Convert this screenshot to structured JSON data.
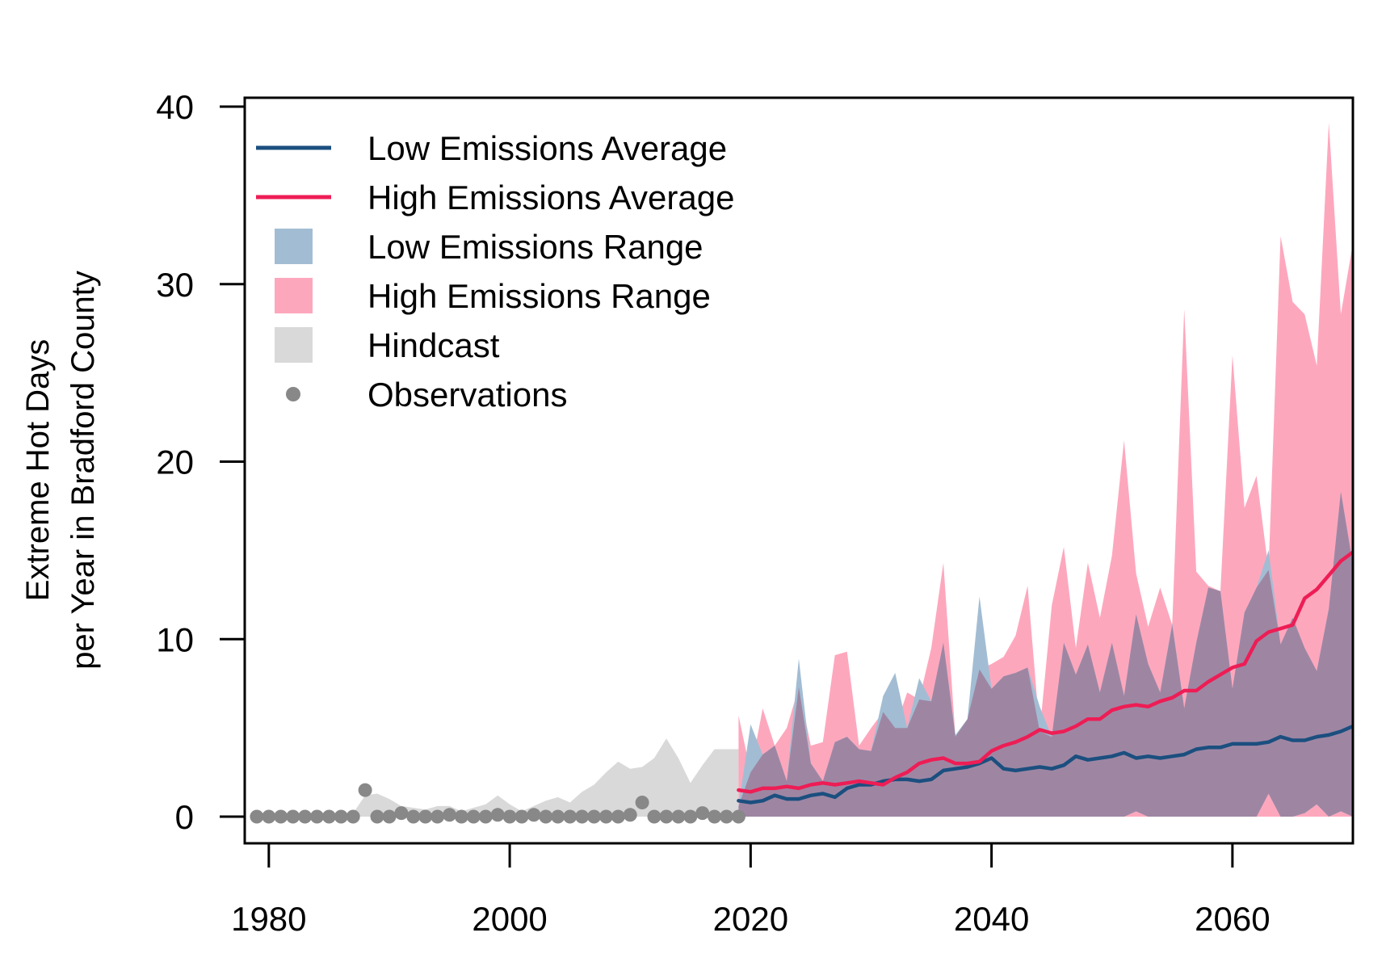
{
  "chart_data": {
    "type": "area",
    "ylabel_lines": [
      "Extreme Hot Days",
      "per Year in Bradford County"
    ],
    "xlabel": "",
    "xlim": [
      1978,
      2070
    ],
    "ylim": [
      -1.5,
      40.5
    ],
    "x_ticks": [
      1980,
      2000,
      2020,
      2040,
      2060
    ],
    "y_ticks": [
      0,
      10,
      20,
      30,
      40
    ],
    "grid": false,
    "legend_position": "top-left",
    "legend": [
      {
        "label": "Low Emissions Average",
        "kind": "line",
        "color": "#1b4f7f"
      },
      {
        "label": "High Emissions Average",
        "kind": "line",
        "color": "#ee1d55"
      },
      {
        "label": "Low Emissions Range",
        "kind": "box",
        "color": "#a2bdd3"
      },
      {
        "label": "High Emissions Range",
        "kind": "box",
        "color": "#fda7bd"
      },
      {
        "label": "Hindcast",
        "kind": "box",
        "color": "#d9d9d9"
      },
      {
        "label": "Observations",
        "kind": "point",
        "color": "#888888"
      }
    ],
    "colors": {
      "low_avg": "#1b4f7f",
      "high_avg": "#ee1d55",
      "low_range": "#a2bdd3",
      "high_range": "#fda7bd",
      "overlap": "#9e86a3",
      "hindcast": "#d9d9d9",
      "observations": "#888888"
    },
    "observations": {
      "x": [
        1979,
        1980,
        1981,
        1982,
        1983,
        1984,
        1985,
        1986,
        1987,
        1988,
        1989,
        1990,
        1991,
        1992,
        1993,
        1994,
        1995,
        1996,
        1997,
        1998,
        1999,
        2000,
        2001,
        2002,
        2003,
        2004,
        2005,
        2006,
        2007,
        2008,
        2009,
        2010,
        2011,
        2012,
        2013,
        2014,
        2015,
        2016,
        2017,
        2018,
        2019
      ],
      "y": [
        0,
        0,
        0,
        0,
        0,
        0,
        0,
        0,
        0,
        1.5,
        0,
        0,
        0.2,
        0,
        0,
        0,
        0.1,
        0,
        0,
        0,
        0.1,
        0,
        0,
        0.1,
        0,
        0,
        0,
        0,
        0,
        0,
        0,
        0.1,
        0.8,
        0,
        0,
        0,
        0,
        0.2,
        0,
        0,
        0
      ]
    },
    "hindcast_range": {
      "x": [
        1979,
        1980,
        1981,
        1982,
        1983,
        1984,
        1985,
        1986,
        1987,
        1988,
        1989,
        1990,
        1991,
        1992,
        1993,
        1994,
        1995,
        1996,
        1997,
        1998,
        1999,
        2000,
        2001,
        2002,
        2003,
        2004,
        2005,
        2006,
        2007,
        2008,
        2009,
        2010,
        2011,
        2012,
        2013,
        2014,
        2015,
        2016,
        2017,
        2018,
        2019
      ],
      "upper": [
        0,
        0,
        0,
        0,
        0,
        0,
        0,
        0,
        0.2,
        1.2,
        1.3,
        1.0,
        0.6,
        0.5,
        0.4,
        0.6,
        0.6,
        0.3,
        0.5,
        0.7,
        1.2,
        0.7,
        0.3,
        0.6,
        0.9,
        1.1,
        0.8,
        1.4,
        1.8,
        2.5,
        3.1,
        2.7,
        2.8,
        3.3,
        4.4,
        3.3,
        1.9,
        2.9,
        3.8,
        3.8,
        3.8
      ],
      "lower": [
        0,
        0,
        0,
        0,
        0,
        0,
        0,
        0,
        0,
        0,
        0,
        0,
        0,
        0,
        0,
        0,
        0,
        0,
        0,
        0,
        0,
        0,
        0,
        0,
        0,
        0,
        0,
        0,
        0,
        0,
        0,
        0,
        0,
        0,
        0,
        0,
        0,
        0,
        0,
        0,
        0
      ]
    },
    "projection_x": [
      2019,
      2020,
      2021,
      2022,
      2023,
      2024,
      2025,
      2026,
      2027,
      2028,
      2029,
      2030,
      2031,
      2032,
      2033,
      2034,
      2035,
      2036,
      2037,
      2038,
      2039,
      2040,
      2041,
      2042,
      2043,
      2044,
      2045,
      2046,
      2047,
      2048,
      2049,
      2050,
      2051,
      2052,
      2053,
      2054,
      2055,
      2056,
      2057,
      2058,
      2059,
      2060,
      2061,
      2062,
      2063,
      2064,
      2065,
      2066,
      2067,
      2068,
      2069,
      2070
    ],
    "series": [
      {
        "name": "Low Emissions Average",
        "values": [
          0.9,
          0.8,
          0.9,
          1.2,
          1.0,
          1.0,
          1.2,
          1.3,
          1.1,
          1.6,
          1.8,
          1.8,
          2.0,
          2.1,
          2.1,
          2.0,
          2.1,
          2.6,
          2.7,
          2.8,
          3.0,
          3.3,
          2.7,
          2.6,
          2.7,
          2.8,
          2.7,
          2.9,
          3.4,
          3.2,
          3.3,
          3.4,
          3.6,
          3.3,
          3.4,
          3.3,
          3.4,
          3.5,
          3.8,
          3.9,
          3.9,
          4.1,
          4.1,
          4.1,
          4.2,
          4.5,
          4.3,
          4.3,
          4.5,
          4.6,
          4.8,
          5.1
        ]
      },
      {
        "name": "High Emissions Average",
        "values": [
          1.5,
          1.4,
          1.6,
          1.6,
          1.7,
          1.6,
          1.8,
          1.9,
          1.8,
          1.9,
          2.0,
          1.9,
          1.8,
          2.2,
          2.5,
          3.0,
          3.2,
          3.3,
          3.0,
          3.0,
          3.1,
          3.7,
          4.0,
          4.2,
          4.5,
          4.9,
          4.7,
          4.8,
          5.1,
          5.5,
          5.5,
          6.0,
          6.2,
          6.3,
          6.2,
          6.5,
          6.7,
          7.1,
          7.1,
          7.6,
          8.0,
          8.4,
          8.6,
          9.9,
          10.4,
          10.6,
          10.8,
          12.3,
          12.8,
          13.6,
          14.4,
          14.9
        ]
      }
    ],
    "ranges": [
      {
        "name": "Low Emissions Range",
        "upper": [
          0.6,
          5.2,
          3.5,
          4.0,
          2.0,
          8.9,
          3.0,
          2.0,
          4.2,
          4.5,
          3.8,
          3.7,
          6.8,
          8.1,
          5.0,
          7.8,
          6.5,
          9.8,
          4.6,
          5.5,
          12.4,
          7.2,
          7.9,
          8.1,
          8.4,
          6.2,
          4.5,
          9.8,
          8.0,
          9.7,
          7.0,
          9.8,
          6.8,
          11.4,
          8.6,
          7.0,
          10.9,
          6.1,
          9.8,
          12.9,
          12.7,
          7.2,
          11.5,
          12.9,
          15.0,
          9.7,
          11.2,
          9.5,
          8.2,
          11.7,
          18.3,
          14.2
        ],
        "lower": [
          0,
          0,
          0,
          0,
          0,
          0,
          0,
          0,
          0,
          0,
          0,
          0,
          0,
          0,
          0,
          0,
          0,
          0,
          0,
          0,
          0,
          0,
          0,
          0,
          0,
          0,
          0,
          0,
          0,
          0,
          0,
          0,
          0,
          0.3,
          0,
          0,
          0,
          0,
          0,
          0,
          0,
          0,
          0,
          0,
          1.3,
          0,
          0,
          0.2,
          0.7,
          0,
          0.3,
          0
        ]
      },
      {
        "name": "High Emissions Range",
        "upper": [
          5.7,
          2.5,
          6.1,
          4.0,
          5.0,
          7.3,
          4.0,
          4.2,
          9.1,
          9.3,
          4.0,
          5.0,
          5.9,
          5.0,
          7.0,
          6.6,
          9.5,
          14.3,
          4.5,
          5.5,
          8.3,
          8.6,
          9.0,
          10.2,
          13.0,
          4.8,
          11.9,
          15.2,
          9.5,
          14.3,
          11.2,
          14.7,
          21.2,
          13.7,
          10.7,
          12.9,
          10.8,
          28.6,
          13.8,
          13.0,
          12.7,
          26.0,
          17.4,
          19.2,
          13.9,
          32.7,
          29.0,
          28.3,
          25.4,
          39.1,
          28.3,
          32.3
        ],
        "lower": [
          0,
          0,
          0,
          0,
          0,
          0,
          0,
          0,
          0,
          0,
          0,
          0,
          0,
          0,
          0,
          0,
          0,
          0,
          0,
          0,
          0,
          0,
          0,
          0,
          0,
          0,
          0,
          0,
          0,
          0,
          0,
          0,
          0,
          0,
          0,
          0,
          0,
          0,
          0,
          0,
          0,
          0,
          0,
          0,
          0,
          0,
          0,
          0,
          0,
          0,
          0,
          0
        ]
      }
    ]
  }
}
